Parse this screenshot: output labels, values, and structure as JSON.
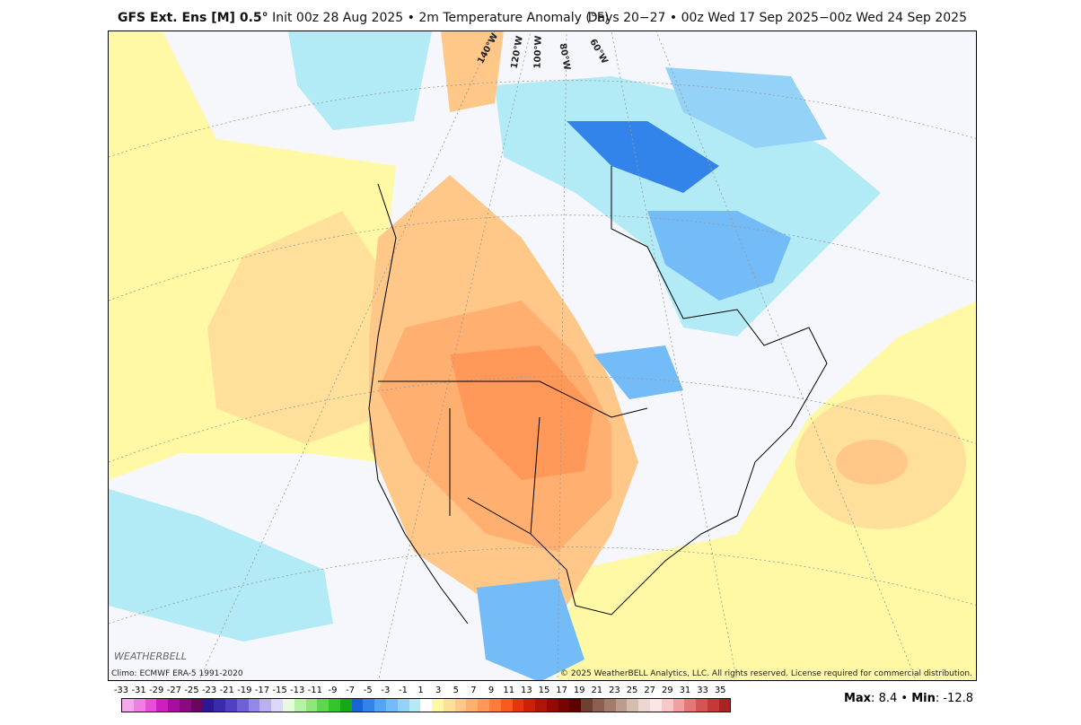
{
  "header": {
    "model": "GFS Ext. Ens [M] 0.5",
    "degree": "°",
    "init": "Init 00z 28 Aug 2025",
    "sep": "•",
    "variable": "2m Temperature Anomaly (°F)",
    "period": "Days 20−27 • 00z Wed 17 Sep 2025−00z Wed 24 Sep 2025"
  },
  "map": {
    "climo": "Climo: ECMWF ERA-5 1991-2020",
    "copyright": "© 2025 WeatherBELL Analytics, LLC. All rights reserved. License required for commercial distribution.",
    "logo": "WeatherBELL",
    "meridian_labels": [
      "140°W",
      "120°W",
      "100°W",
      "80°W",
      "60°W"
    ]
  },
  "colorbar": {
    "labels": [
      "-33",
      "-31",
      "-29",
      "-27",
      "-25",
      "-23",
      "-21",
      "-19",
      "-17",
      "-15",
      "-13",
      "-11",
      "-9",
      "-7",
      "-5",
      "-3",
      "-1",
      "1",
      "3",
      "5",
      "7",
      "9",
      "11",
      "13",
      "15",
      "17",
      "19",
      "21",
      "23",
      "25",
      "27",
      "29",
      "31",
      "33",
      "35"
    ],
    "colors": [
      "#f5a8ec",
      "#ee80e2",
      "#e650d6",
      "#cc1fc0",
      "#a80e9e",
      "#880a80",
      "#680560",
      "#2c1896",
      "#3c2aac",
      "#5040c4",
      "#7060d6",
      "#9488e6",
      "#b8b0f2",
      "#dcd8fa",
      "#e6fadc",
      "#b4f2a4",
      "#8ce878",
      "#5cd84c",
      "#34c42c",
      "#16a818",
      "#1a64d8",
      "#3284ea",
      "#52a4f4",
      "#74bcf8",
      "#94d2f8",
      "#b2eaf6",
      "#ffffff",
      "#fff8a4",
      "#ffe09a",
      "#ffc888",
      "#ffb070",
      "#ff9858",
      "#ff7c3c",
      "#f85a1c",
      "#e43410",
      "#cc2008",
      "#b01404",
      "#940a02",
      "#780400",
      "#5c0000",
      "#6e4030",
      "#8c6050",
      "#a47c6c",
      "#bc9c8c",
      "#d4bcb0",
      "#ecd8d0",
      "#fae6e4",
      "#f8c8c8",
      "#f0a0a0",
      "#e47878",
      "#d45454",
      "#c43838",
      "#a82424"
    ]
  },
  "stats": {
    "max_label": "Max",
    "max": "8.4",
    "min_label": "Min",
    "min": "-12.8"
  }
}
